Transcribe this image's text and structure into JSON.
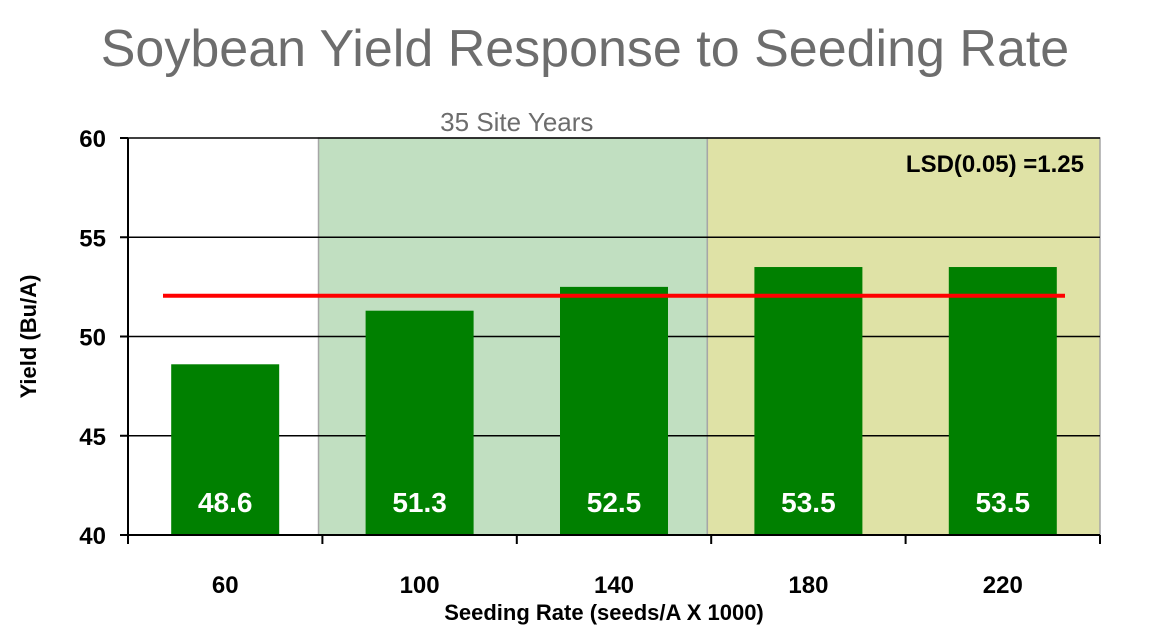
{
  "chart_data": {
    "type": "bar",
    "title": "Soybean Yield Response to Seeding Rate",
    "subtitle": "35 Site Years",
    "xlabel": "Seeding Rate (seeds/A X 1000)",
    "ylabel": "Yield (Bu/A)",
    "categories": [
      "60",
      "100",
      "140",
      "180",
      "220"
    ],
    "values": [
      48.6,
      51.3,
      52.5,
      53.5,
      53.5
    ],
    "data_labels": [
      "48.6",
      "51.3",
      "52.5",
      "53.5",
      "53.5"
    ],
    "ylim": [
      40,
      60
    ],
    "yticks": [
      40,
      45,
      50,
      55,
      60
    ],
    "grid": true,
    "bar_color": "#008000",
    "reference_line": {
      "value": 52,
      "color": "#ff0000"
    },
    "regions": [
      {
        "from_category": "100",
        "to_category": "140",
        "color": "#c1dfc1"
      },
      {
        "from_category": "180",
        "to_category": "220",
        "color": "#dfe2a6"
      }
    ],
    "annotation": "LSD(0.05) =1.25"
  }
}
